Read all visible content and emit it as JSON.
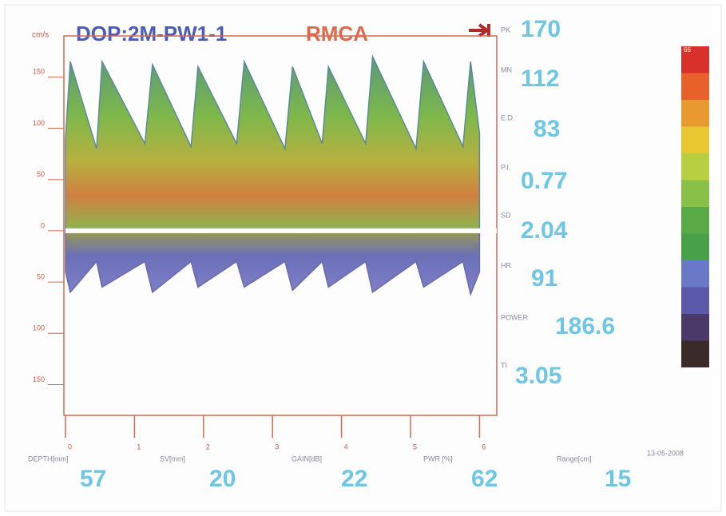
{
  "header": {
    "unit": "cm/s",
    "title": "DOP:2M-PW1-1",
    "vessel": "RMCA"
  },
  "plot": {
    "xlim": [
      0,
      6.25
    ],
    "ylim": [
      -180,
      190
    ],
    "xticks": [
      0,
      1,
      2,
      3,
      4,
      5,
      6
    ],
    "yticks": [
      {
        "value": 150,
        "label": "150"
      },
      {
        "value": 100,
        "label": "100"
      },
      {
        "value": 50,
        "label": "50"
      },
      {
        "value": 0,
        "label": "0"
      },
      {
        "value": -50,
        "label": "50"
      },
      {
        "value": -100,
        "label": "100"
      },
      {
        "value": -150,
        "label": "150"
      }
    ],
    "envelope": {
      "x": [
        0,
        0.07,
        0.45,
        0.53,
        1.15,
        1.26,
        1.82,
        1.92,
        2.48,
        2.59,
        3.18,
        3.29,
        3.72,
        3.81,
        4.35,
        4.45,
        5.08,
        5.19,
        5.76,
        5.87,
        6.0
      ],
      "upper": [
        90,
        165,
        80,
        165,
        85,
        162,
        82,
        160,
        85,
        165,
        80,
        160,
        85,
        160,
        85,
        170,
        80,
        165,
        82,
        165,
        95
      ],
      "lower": [
        -40,
        -60,
        -30,
        -55,
        -30,
        -60,
        -30,
        -55,
        -30,
        -55,
        -30,
        -58,
        -30,
        -55,
        -30,
        -60,
        -30,
        -55,
        -30,
        -62,
        -40
      ]
    }
  },
  "parameters": [
    {
      "label": "PK",
      "value": "170"
    },
    {
      "label": "MN",
      "value": "112"
    },
    {
      "label": "E.D.",
      "value": "83"
    },
    {
      "label": "P.I.",
      "value": "0.77"
    },
    {
      "label": "SD",
      "value": "2.04"
    },
    {
      "label": "HR",
      "value": "91"
    },
    {
      "label": "POWER",
      "value": "186.6"
    },
    {
      "label": "TI",
      "value": "3.05"
    }
  ],
  "color_scale": {
    "max_label": "66"
  },
  "footer": {
    "date": "13-05-2008",
    "fields": [
      {
        "label": "DEPTH[mm]",
        "value": "57"
      },
      {
        "label": "SV[mm]",
        "value": "20"
      },
      {
        "label": "GAIN[dB]",
        "value": "22"
      },
      {
        "label": "PWR [%]",
        "value": "62"
      },
      {
        "label": "Range[cm]",
        "value": "15"
      }
    ]
  }
}
